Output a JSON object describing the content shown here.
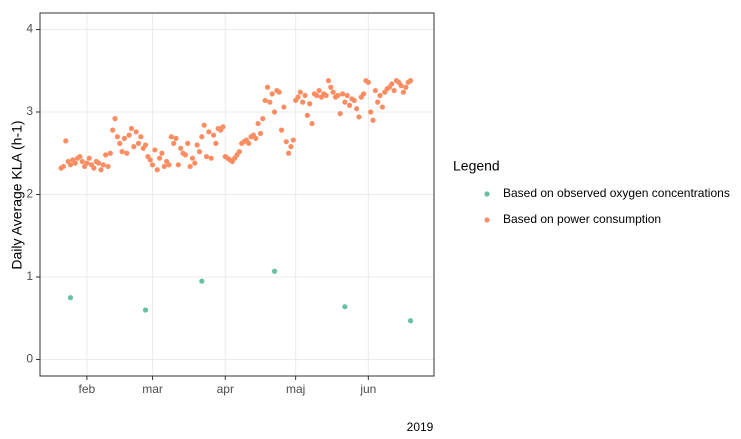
{
  "chart_data": {
    "type": "scatter",
    "xlabel": "2019",
    "ylabel": "Daily Average KLA (h-1)",
    "legend_title": "Legend",
    "legend_position": "right",
    "grid": true,
    "xlim": [
      12,
      180
    ],
    "xticks": [
      {
        "value": 32,
        "label": "feb"
      },
      {
        "value": 60,
        "label": "mar"
      },
      {
        "value": 91,
        "label": "apr"
      },
      {
        "value": 121,
        "label": "maj"
      },
      {
        "value": 152,
        "label": "jun"
      }
    ],
    "ylim": [
      -0.2,
      4.2
    ],
    "yticks": [
      0,
      1,
      2,
      3,
      4
    ],
    "series": [
      {
        "name": "Based on observed oxygen concentrations",
        "color": "#66c2a5",
        "x": [
          25,
          57,
          81,
          112,
          142,
          170
        ],
        "values": [
          0.75,
          0.6,
          0.95,
          1.07,
          0.64,
          0.47
        ]
      },
      {
        "name": "Based on power consumption",
        "color": "#fc8d62",
        "x": [
          21,
          22,
          23,
          24,
          25,
          26,
          27,
          28,
          29,
          30,
          31,
          32,
          33,
          34,
          35,
          36,
          37,
          38,
          39,
          40,
          41,
          42,
          43,
          44,
          45,
          46,
          47,
          48,
          49,
          50,
          51,
          52,
          53,
          54,
          55,
          56,
          57,
          58,
          59,
          60,
          61,
          62,
          63,
          64,
          65,
          66,
          67,
          68,
          69,
          70,
          71,
          72,
          73,
          74,
          75,
          76,
          77,
          78,
          79,
          80,
          81,
          82,
          83,
          84,
          85,
          86,
          87,
          88,
          89,
          90,
          91,
          92,
          93,
          94,
          95,
          96,
          97,
          98,
          99,
          100,
          101,
          102,
          103,
          104,
          105,
          106,
          107,
          108,
          109,
          110,
          111,
          112,
          113,
          114,
          115,
          116,
          117,
          118,
          119,
          120,
          121,
          122,
          123,
          124,
          125,
          126,
          127,
          128,
          129,
          130,
          131,
          132,
          133,
          134,
          135,
          136,
          137,
          138,
          139,
          140,
          141,
          142,
          143,
          144,
          145,
          146,
          147,
          148,
          149,
          150,
          151,
          152,
          153,
          154,
          155,
          156,
          157,
          158,
          159,
          160,
          161,
          162,
          163,
          164,
          165,
          166,
          167,
          168,
          169,
          170
        ],
        "values": [
          2.32,
          2.34,
          2.65,
          2.4,
          2.36,
          2.42,
          2.38,
          2.44,
          2.46,
          2.4,
          2.34,
          2.38,
          2.44,
          2.36,
          2.32,
          2.4,
          2.38,
          2.3,
          2.36,
          2.48,
          2.34,
          2.5,
          2.78,
          2.92,
          2.7,
          2.62,
          2.52,
          2.68,
          2.5,
          2.72,
          2.8,
          2.58,
          2.76,
          2.62,
          2.7,
          2.56,
          2.6,
          2.46,
          2.42,
          2.36,
          2.54,
          2.3,
          2.44,
          2.5,
          2.34,
          2.4,
          2.36,
          2.7,
          2.62,
          2.68,
          2.36,
          2.56,
          2.5,
          2.48,
          2.62,
          2.34,
          2.44,
          2.38,
          2.6,
          2.52,
          2.7,
          2.84,
          2.46,
          2.76,
          2.44,
          2.72,
          2.62,
          2.8,
          2.78,
          2.82,
          2.46,
          2.44,
          2.42,
          2.4,
          2.44,
          2.48,
          2.52,
          2.62,
          2.64,
          2.66,
          2.62,
          2.7,
          2.72,
          2.68,
          2.86,
          2.74,
          2.92,
          3.14,
          3.3,
          3.12,
          3.22,
          3.0,
          3.26,
          3.24,
          2.78,
          3.06,
          2.64,
          2.5,
          2.58,
          2.66,
          3.14,
          3.18,
          3.24,
          3.12,
          3.2,
          2.96,
          3.1,
          2.86,
          3.22,
          3.2,
          3.26,
          3.18,
          3.22,
          3.2,
          3.38,
          3.3,
          3.24,
          3.18,
          3.2,
          2.98,
          3.22,
          3.12,
          3.2,
          3.08,
          3.16,
          3.14,
          3.04,
          2.94,
          3.18,
          3.22,
          3.38,
          3.36,
          3.0,
          2.9,
          3.26,
          3.12,
          3.2,
          3.06,
          3.24,
          3.28,
          3.3,
          3.34,
          3.26,
          3.38,
          3.36,
          3.32,
          3.24,
          3.3,
          3.36,
          3.38
        ]
      }
    ]
  }
}
